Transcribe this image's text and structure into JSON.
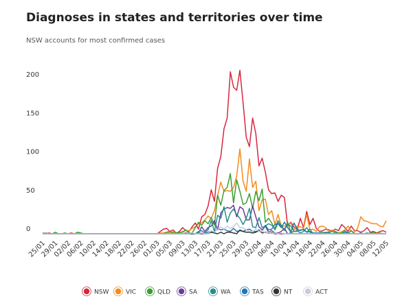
{
  "chart_data": {
    "type": "line",
    "title": "Diagnoses in states and territories over time",
    "subtitle": "NSW accounts for most confirmed cases",
    "categories": [
      "25/01",
      null,
      null,
      null,
      "29/01",
      null,
      null,
      null,
      "02/02",
      null,
      null,
      null,
      "06/02",
      null,
      null,
      null,
      "10/02",
      null,
      null,
      null,
      "14/02",
      null,
      null,
      null,
      "18/02",
      null,
      null,
      null,
      "22/02",
      null,
      null,
      null,
      "26/02",
      null,
      null,
      null,
      "01/03",
      null,
      null,
      null,
      "05/03",
      null,
      null,
      null,
      "09/03",
      null,
      null,
      null,
      "13/03",
      null,
      null,
      null,
      "17/03",
      null,
      null,
      null,
      "21/03",
      null,
      null,
      null,
      "25/03",
      null,
      null,
      null,
      "29/03",
      null,
      null,
      null,
      "02/04",
      null,
      null,
      null,
      "06/04",
      null,
      null,
      null,
      "10/04",
      null,
      null,
      null,
      "14/04",
      null,
      null,
      null,
      "18/04",
      null,
      null,
      null,
      "22/04",
      null,
      null,
      null,
      "26/04",
      null,
      null,
      null,
      "30/04",
      null,
      null,
      null,
      "04/05",
      null,
      null,
      null,
      "08/05",
      null,
      null,
      null,
      "12/05"
    ],
    "series": [
      {
        "name": "NSW",
        "color": "#d7263d",
        "values": [
          1,
          0,
          1,
          0,
          0,
          0,
          0,
          0,
          0,
          1,
          0,
          0,
          0,
          0,
          0,
          0,
          0,
          0,
          0,
          0,
          0,
          0,
          0,
          0,
          0,
          0,
          0,
          0,
          0,
          0,
          0,
          0,
          0,
          0,
          0,
          0,
          0,
          3,
          6,
          7,
          3,
          5,
          1,
          3,
          8,
          4,
          3,
          9,
          14,
          6,
          22,
          25,
          36,
          57,
          42,
          85,
          100,
          136,
          150,
          210,
          190,
          186,
          212,
          170,
          125,
          113,
          150,
          130,
          88,
          98,
          80,
          57,
          52,
          53,
          42,
          50,
          47,
          10,
          15,
          9,
          5,
          20,
          8,
          29,
          12,
          20,
          7,
          3,
          4,
          6,
          5,
          3,
          6,
          4,
          12,
          8,
          3,
          10,
          4,
          4,
          2,
          4,
          8,
          2,
          3,
          1,
          3,
          4,
          2
        ]
      },
      {
        "name": "VIC",
        "color": "#f28c1e",
        "values": [
          0,
          0,
          0,
          0,
          0,
          0,
          0,
          0,
          0,
          0,
          0,
          0,
          0,
          0,
          0,
          0,
          0,
          0,
          0,
          0,
          0,
          0,
          0,
          0,
          0,
          0,
          0,
          0,
          0,
          0,
          0,
          0,
          0,
          0,
          0,
          0,
          0,
          1,
          1,
          2,
          1,
          3,
          1,
          1,
          3,
          4,
          4,
          7,
          9,
          13,
          14,
          18,
          23,
          20,
          30,
          50,
          67,
          55,
          56,
          55,
          60,
          75,
          110,
          68,
          55,
          97,
          60,
          68,
          30,
          44,
          45,
          25,
          30,
          12,
          25,
          10,
          10,
          10,
          14,
          5,
          10,
          9,
          7,
          25,
          5,
          6,
          3,
          9,
          10,
          8,
          2,
          5,
          2,
          0,
          3,
          5,
          10,
          3,
          2,
          7,
          22,
          17,
          16,
          14,
          13,
          13,
          10,
          9,
          17
        ]
      },
      {
        "name": "QLD",
        "color": "#3a9e2f",
        "values": [
          0,
          1,
          0,
          0,
          2,
          0,
          0,
          1,
          0,
          0,
          0,
          2,
          1,
          0,
          0,
          0,
          0,
          0,
          0,
          0,
          0,
          0,
          0,
          0,
          0,
          0,
          0,
          0,
          0,
          0,
          0,
          0,
          0,
          0,
          0,
          0,
          0,
          0,
          0,
          2,
          3,
          1,
          1,
          2,
          2,
          5,
          1,
          1,
          8,
          15,
          11,
          17,
          13,
          21,
          11,
          50,
          37,
          56,
          60,
          78,
          40,
          70,
          55,
          38,
          40,
          52,
          33,
          55,
          43,
          58,
          15,
          20,
          14,
          5,
          14,
          10,
          4,
          15,
          2,
          3,
          3,
          5,
          5,
          2,
          6,
          0,
          0,
          1,
          2,
          1,
          2,
          3,
          3,
          1,
          1,
          4,
          1,
          4,
          0,
          0,
          0,
          0,
          0,
          1,
          2,
          0,
          1,
          0,
          0
        ]
      },
      {
        "name": "SA",
        "color": "#6a3d9a",
        "values": [
          0,
          0,
          0,
          0,
          0,
          0,
          0,
          0,
          0,
          0,
          0,
          0,
          0,
          0,
          0,
          0,
          0,
          0,
          0,
          0,
          0,
          0,
          0,
          0,
          0,
          0,
          0,
          0,
          0,
          0,
          0,
          0,
          0,
          0,
          0,
          0,
          0,
          0,
          0,
          0,
          0,
          0,
          0,
          0,
          0,
          1,
          0,
          0,
          0,
          1,
          9,
          3,
          8,
          10,
          17,
          5,
          27,
          32,
          34,
          33,
          37,
          22,
          35,
          32,
          18,
          18,
          36,
          22,
          9,
          5,
          10,
          2,
          4,
          1,
          1,
          3,
          7,
          0,
          1,
          0,
          0,
          0,
          0,
          0,
          0,
          0,
          0,
          0,
          0,
          0,
          0,
          0,
          0,
          0,
          0,
          0,
          0,
          0,
          0,
          0,
          0,
          0,
          0,
          0,
          0,
          0,
          0,
          0,
          0
        ]
      },
      {
        "name": "WA",
        "color": "#2a8c8c",
        "values": [
          0,
          0,
          0,
          0,
          0,
          0,
          0,
          0,
          0,
          0,
          0,
          0,
          0,
          0,
          0,
          0,
          0,
          0,
          0,
          0,
          0,
          0,
          0,
          0,
          0,
          0,
          0,
          0,
          0,
          0,
          0,
          0,
          0,
          0,
          0,
          0,
          0,
          0,
          0,
          0,
          0,
          0,
          0,
          0,
          0,
          0,
          0,
          0,
          0,
          3,
          4,
          1,
          5,
          17,
          3,
          24,
          20,
          35,
          15,
          27,
          32,
          25,
          20,
          12,
          20,
          33,
          9,
          8,
          21,
          8,
          10,
          13,
          11,
          7,
          17,
          11,
          5,
          12,
          10,
          3,
          4,
          1,
          3,
          8,
          2,
          1,
          0,
          0,
          0,
          1,
          0,
          0,
          2,
          0,
          0,
          0,
          0,
          0,
          0,
          0,
          1,
          0,
          0,
          0,
          0,
          0,
          0,
          0,
          0
        ]
      },
      {
        "name": "TAS",
        "color": "#1f77b4",
        "values": [
          0,
          0,
          0,
          0,
          0,
          0,
          0,
          0,
          0,
          0,
          0,
          0,
          0,
          0,
          0,
          0,
          0,
          0,
          0,
          0,
          0,
          0,
          0,
          0,
          0,
          0,
          0,
          0,
          0,
          0,
          0,
          0,
          0,
          0,
          0,
          0,
          0,
          0,
          0,
          0,
          0,
          0,
          0,
          0,
          0,
          0,
          0,
          0,
          0,
          1,
          1,
          0,
          2,
          3,
          2,
          7,
          5,
          6,
          4,
          3,
          7,
          3,
          4,
          3,
          5,
          6,
          3,
          3,
          3,
          4,
          11,
          5,
          6,
          12,
          13,
          8,
          15,
          8,
          2,
          14,
          6,
          4,
          6,
          2,
          3,
          1,
          1,
          1,
          0,
          2,
          1,
          0,
          0,
          0,
          0,
          2,
          1,
          0,
          0,
          0,
          0,
          0,
          1,
          0,
          0,
          0,
          0,
          0,
          0
        ]
      },
      {
        "name": "NT",
        "color": "#333333",
        "values": [
          0,
          0,
          0,
          0,
          0,
          0,
          0,
          0,
          0,
          0,
          0,
          0,
          0,
          0,
          0,
          0,
          0,
          0,
          0,
          0,
          0,
          0,
          0,
          0,
          0,
          0,
          0,
          0,
          0,
          0,
          0,
          0,
          0,
          0,
          0,
          0,
          0,
          0,
          0,
          0,
          0,
          0,
          0,
          0,
          0,
          0,
          0,
          0,
          0,
          0,
          0,
          0,
          0,
          2,
          1,
          0,
          2,
          0,
          2,
          2,
          1,
          0,
          5,
          3,
          2,
          2,
          1,
          2,
          5,
          1,
          2,
          1,
          1,
          0,
          0,
          0,
          0,
          0,
          0,
          0,
          0,
          0,
          0,
          0,
          0,
          0,
          0,
          0,
          0,
          0,
          0,
          0,
          0,
          0,
          0,
          0,
          0,
          0,
          0,
          0,
          0,
          0,
          0,
          0,
          0,
          0,
          0,
          0,
          0
        ]
      },
      {
        "name": "ACT",
        "color": "#c8ccd8",
        "values": [
          0,
          0,
          0,
          0,
          0,
          0,
          0,
          0,
          0,
          0,
          0,
          0,
          0,
          0,
          0,
          0,
          0,
          0,
          0,
          0,
          0,
          0,
          0,
          0,
          0,
          0,
          0,
          0,
          0,
          0,
          0,
          0,
          0,
          0,
          0,
          0,
          0,
          0,
          0,
          0,
          0,
          0,
          0,
          0,
          0,
          0,
          0,
          1,
          0,
          0,
          1,
          0,
          0,
          4,
          2,
          6,
          9,
          6,
          10,
          7,
          9,
          14,
          8,
          8,
          5,
          3,
          3,
          6,
          3,
          4,
          1,
          2,
          0,
          1,
          0,
          1,
          0,
          0,
          0,
          0,
          0,
          0,
          0,
          0,
          0,
          0,
          0,
          0,
          0,
          0,
          0,
          0,
          0,
          0,
          0,
          0,
          0,
          0,
          0,
          0,
          0,
          0,
          0,
          0,
          0,
          0,
          0,
          0,
          0
        ]
      }
    ],
    "ylim": [
      0,
      230
    ],
    "yticks": [
      0,
      50,
      100,
      150,
      200
    ],
    "grid": false,
    "legend": "bottom"
  }
}
